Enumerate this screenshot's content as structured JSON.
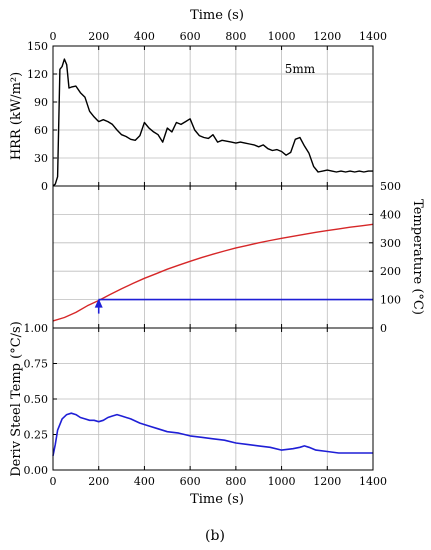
{
  "figure": {
    "top_xlabel": "Time (s)",
    "bottom_xlabel": "Time (s)",
    "caption": "(b)"
  },
  "chart_data": [
    {
      "type": "line",
      "panel": "hrr",
      "ylabel": "HRR (kW/m²)",
      "annotation": "5mm",
      "xlim": [
        0,
        1400
      ],
      "ylim": [
        0,
        150
      ],
      "xticks": [
        0,
        200,
        400,
        600,
        800,
        1000,
        1200,
        1400
      ],
      "yticks": [
        0,
        30,
        60,
        90,
        120,
        150
      ],
      "grid": true,
      "series": [
        {
          "color": "#000000",
          "x": [
            0,
            10,
            20,
            30,
            40,
            50,
            60,
            70,
            80,
            100,
            120,
            140,
            160,
            180,
            200,
            220,
            240,
            260,
            280,
            300,
            320,
            340,
            360,
            380,
            400,
            420,
            440,
            460,
            480,
            500,
            520,
            540,
            560,
            580,
            600,
            620,
            640,
            660,
            680,
            700,
            720,
            740,
            760,
            780,
            800,
            820,
            840,
            860,
            880,
            900,
            920,
            940,
            960,
            980,
            1000,
            1020,
            1040,
            1060,
            1080,
            1100,
            1120,
            1140,
            1160,
            1180,
            1200,
            1220,
            1240,
            1260,
            1280,
            1300,
            1320,
            1340,
            1360,
            1380,
            1400
          ],
          "y": [
            0,
            2,
            10,
            125,
            128,
            136,
            130,
            105,
            106,
            107,
            100,
            95,
            80,
            74,
            69,
            71,
            69,
            66,
            60,
            55,
            53,
            50,
            49,
            54,
            68,
            62,
            58,
            55,
            47,
            62,
            58,
            68,
            66,
            69,
            72,
            60,
            54,
            52,
            51,
            55,
            47,
            49,
            48,
            47,
            46,
            47,
            46,
            45,
            44,
            42,
            44,
            40,
            38,
            39,
            37,
            33,
            36,
            50,
            52,
            43,
            35,
            21,
            15,
            16,
            17,
            16,
            15,
            16,
            15,
            16,
            15,
            16,
            15,
            16,
            16
          ]
        }
      ]
    },
    {
      "type": "line",
      "panel": "temperature",
      "ylabel": "Temperature (°C)",
      "xlim": [
        0,
        1400
      ],
      "ylim": [
        0,
        500
      ],
      "yticks_right": [
        0,
        100,
        200,
        300,
        400,
        500
      ],
      "left_tick_labels": [
        "1.00"
      ],
      "grid": true,
      "series": [
        {
          "color": "#d62728",
          "x": [
            0,
            50,
            100,
            150,
            200,
            250,
            300,
            350,
            400,
            450,
            500,
            550,
            600,
            650,
            700,
            750,
            800,
            850,
            900,
            950,
            1000,
            1050,
            1100,
            1150,
            1200,
            1250,
            1300,
            1350,
            1400
          ],
          "y": [
            25,
            37,
            55,
            78,
            97,
            118,
            138,
            157,
            175,
            191,
            207,
            221,
            235,
            248,
            260,
            271,
            282,
            291,
            300,
            308,
            316,
            323,
            330,
            337,
            343,
            349,
            355,
            360,
            365
          ]
        },
        {
          "color": "#1f1fd6",
          "x": [
            200,
            1400
          ],
          "y": [
            100,
            100
          ]
        }
      ],
      "marker": {
        "x": 200,
        "y": 100,
        "symbol": "up-arrow",
        "color": "#1f1fd6"
      }
    },
    {
      "type": "line",
      "panel": "derivative",
      "ylabel": "Deriv Steel Temp (°C/s)",
      "xlim": [
        0,
        1400
      ],
      "ylim": [
        0,
        1.0
      ],
      "yticks": [
        0.0,
        0.25,
        0.5,
        0.75
      ],
      "grid": true,
      "series": [
        {
          "color": "#1f1fd6",
          "x": [
            0,
            10,
            20,
            40,
            60,
            80,
            100,
            120,
            140,
            160,
            180,
            200,
            220,
            240,
            260,
            280,
            300,
            340,
            380,
            420,
            460,
            500,
            550,
            600,
            650,
            700,
            750,
            800,
            850,
            900,
            950,
            1000,
            1050,
            1080,
            1100,
            1120,
            1150,
            1200,
            1250,
            1300,
            1350,
            1400
          ],
          "y": [
            0.1,
            0.18,
            0.28,
            0.36,
            0.39,
            0.4,
            0.39,
            0.37,
            0.36,
            0.35,
            0.35,
            0.34,
            0.35,
            0.37,
            0.38,
            0.39,
            0.38,
            0.36,
            0.33,
            0.31,
            0.29,
            0.27,
            0.26,
            0.24,
            0.23,
            0.22,
            0.21,
            0.19,
            0.18,
            0.17,
            0.16,
            0.14,
            0.15,
            0.16,
            0.17,
            0.16,
            0.14,
            0.13,
            0.12,
            0.12,
            0.12,
            0.12
          ]
        }
      ]
    }
  ]
}
